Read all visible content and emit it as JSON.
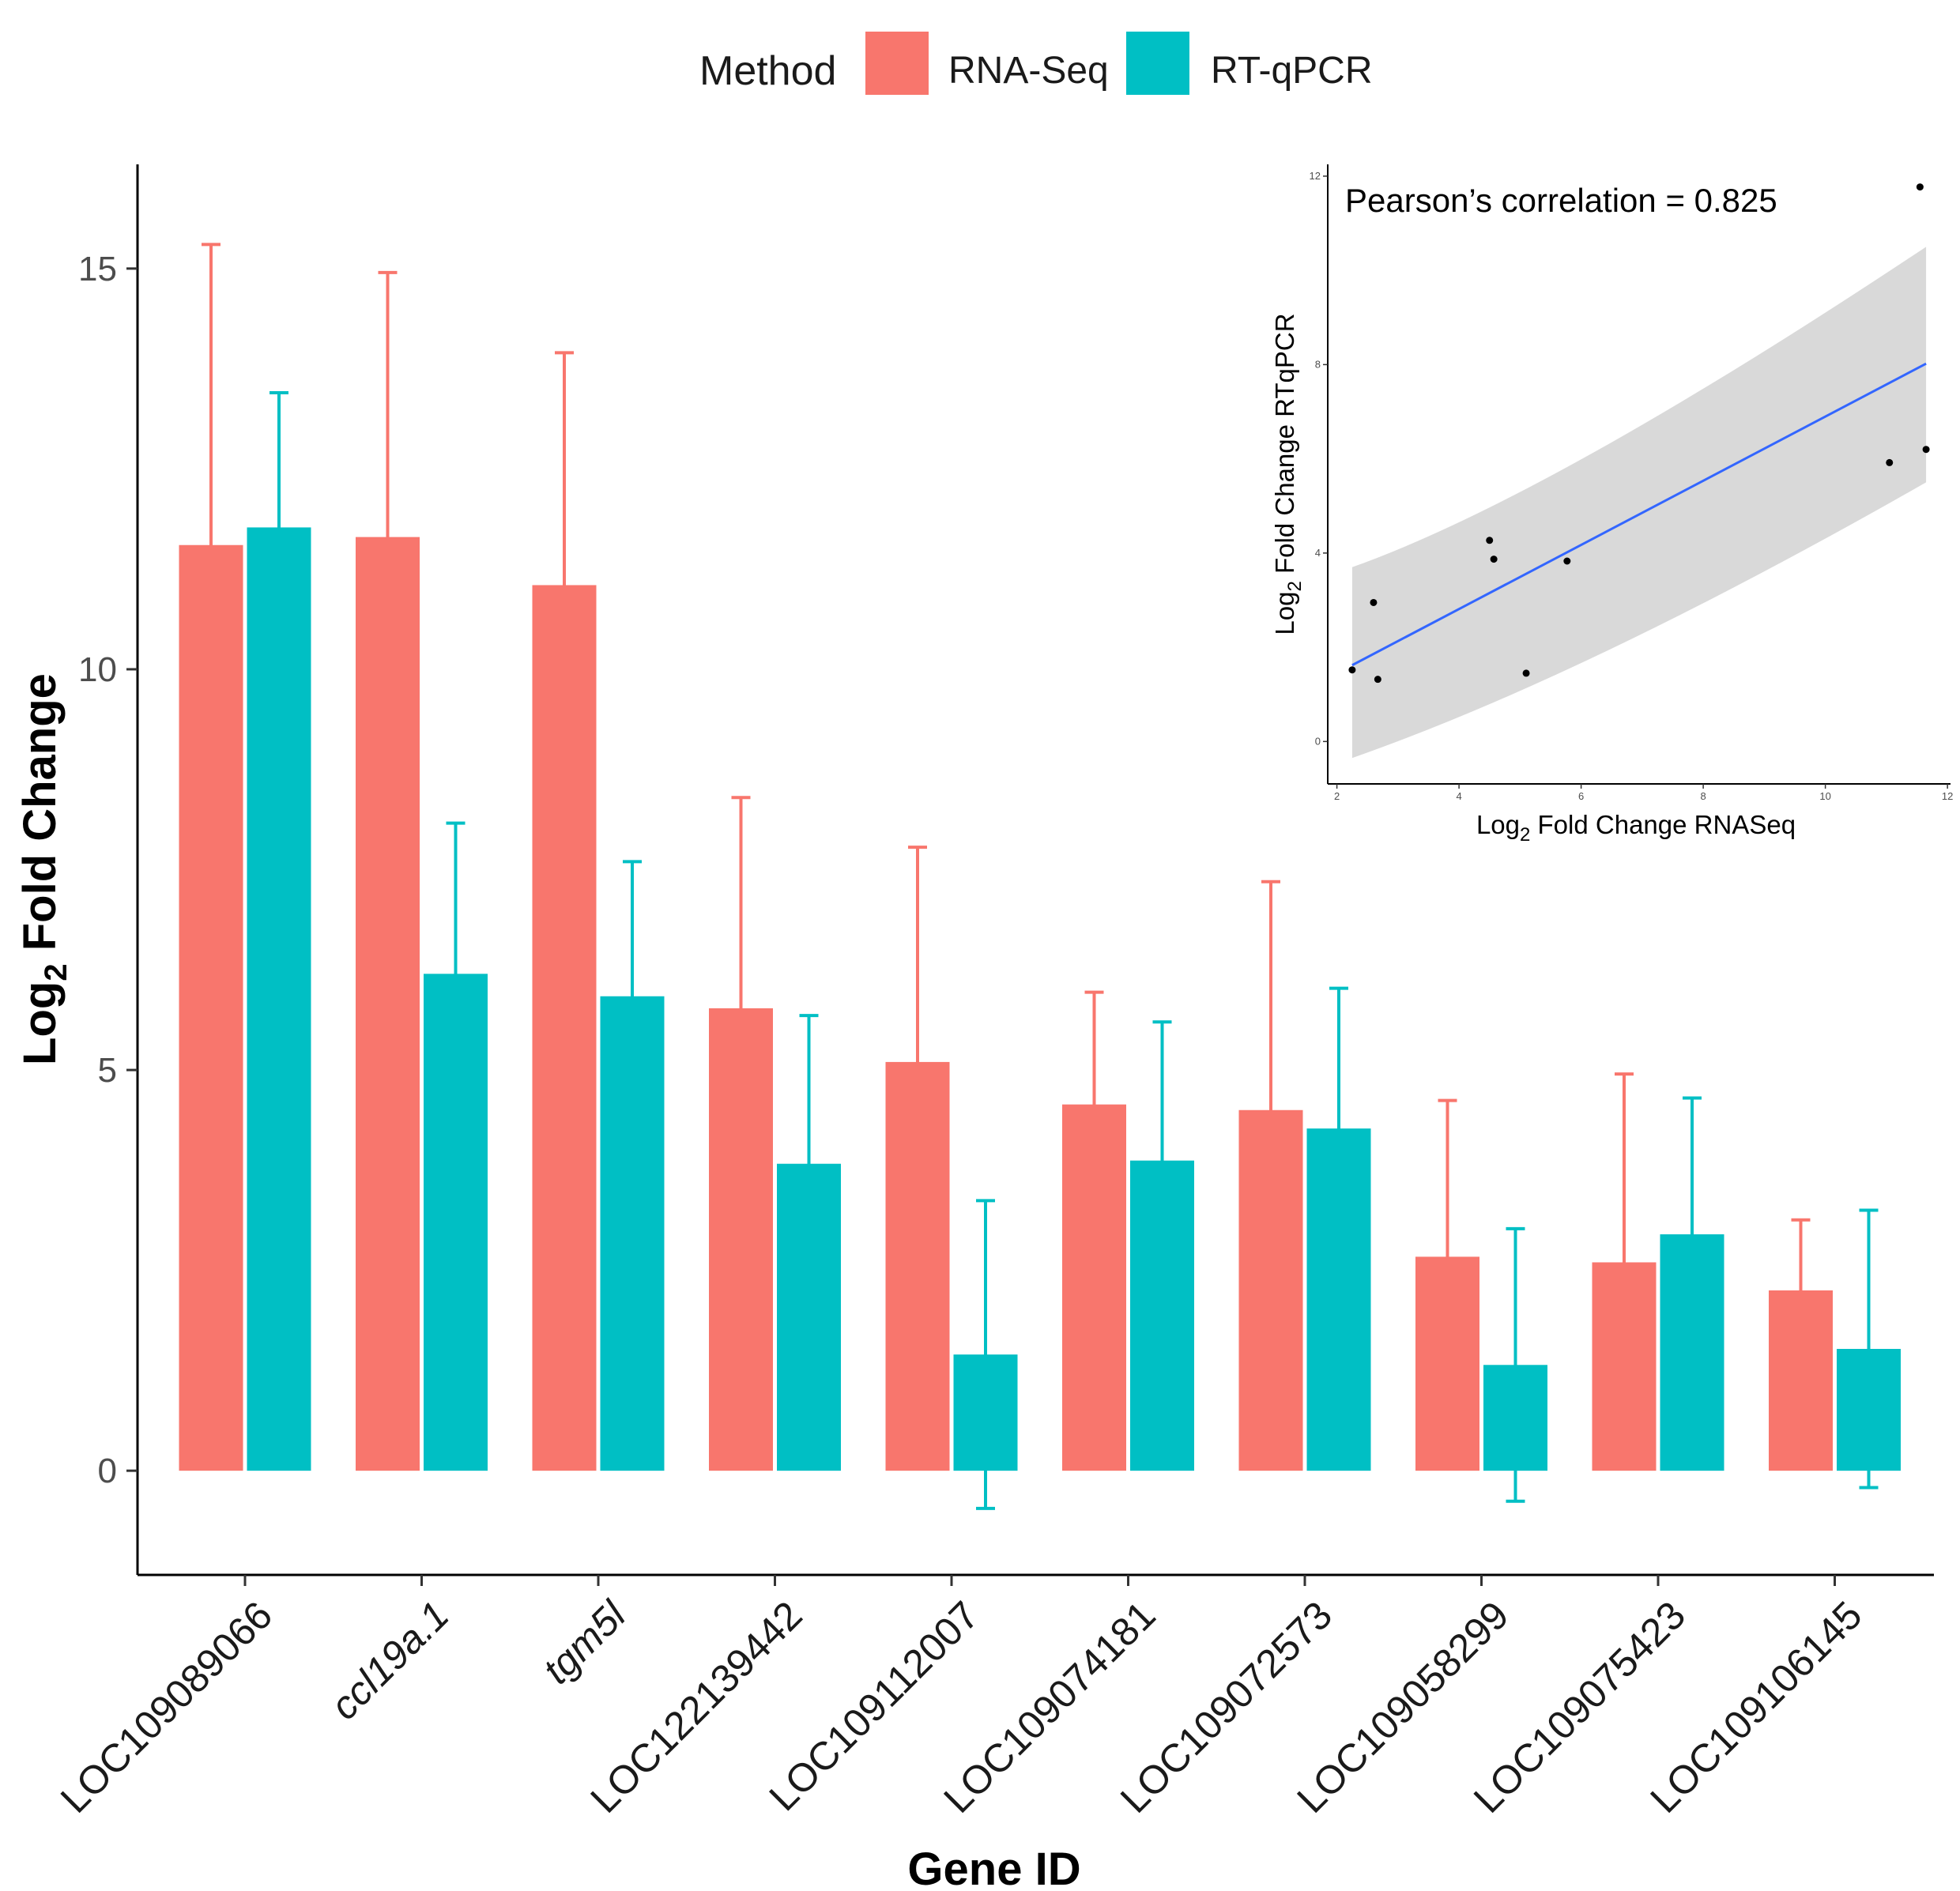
{
  "chart_data": [
    {
      "type": "bar",
      "title": "",
      "legend": {
        "title": "Method",
        "position": "top",
        "entries": [
          {
            "label": "RNA-Seq",
            "color": "#F8766D"
          },
          {
            "label": "RT-qPCR",
            "color": "#00BFC4"
          }
        ]
      },
      "xlabel": "Gene ID",
      "ylabel_main": "Log",
      "ylabel_sub": "2",
      "ylabel_rest": " Fold Change",
      "ylim": [
        -1.3,
        16.3
      ],
      "yticks": [
        0,
        5,
        10,
        15
      ],
      "categories": [
        {
          "label": "LOC109089066",
          "italic": false
        },
        {
          "label": "ccl19a.1",
          "italic": true
        },
        {
          "label": "tgm5l",
          "italic": true
        },
        {
          "label": "LOC122139442",
          "italic": false
        },
        {
          "label": "LOC109112007",
          "italic": false
        },
        {
          "label": "LOC109074181",
          "italic": false
        },
        {
          "label": "LOC109072573",
          "italic": false
        },
        {
          "label": "LOC109058299",
          "italic": false
        },
        {
          "label": "LOC109075423",
          "italic": false
        },
        {
          "label": "LOC109106145",
          "italic": false
        }
      ],
      "series": [
        {
          "name": "RNA-Seq",
          "color": "#F8766D",
          "values": [
            11.55,
            11.65,
            11.05,
            5.77,
            5.1,
            4.57,
            4.5,
            2.67,
            2.6,
            2.25
          ],
          "error": [
            3.75,
            3.3,
            2.9,
            2.63,
            2.68,
            1.4,
            2.85,
            1.95,
            2.35,
            0.88
          ]
        },
        {
          "name": "RT-qPCR",
          "color": "#00BFC4",
          "values": [
            11.77,
            6.2,
            5.92,
            3.83,
            1.45,
            3.87,
            4.27,
            1.32,
            2.95,
            1.52
          ],
          "error": [
            1.68,
            1.88,
            1.68,
            1.85,
            1.92,
            1.73,
            1.75,
            1.7,
            1.7,
            1.73
          ]
        }
      ]
    },
    {
      "type": "scatter",
      "title": "",
      "annotation": "Pearson’s correlation = 0.825",
      "xlabel_main": "Log",
      "xlabel_sub": "2",
      "xlabel_rest": " Fold Change RNASeq",
      "ylabel_main": "Log",
      "ylabel_sub": "2",
      "ylabel_rest": " Fold Change RTqPCR",
      "xlim": [
        1.85,
        12.05
      ],
      "ylim": [
        -0.9,
        12.25
      ],
      "xticks": [
        2,
        4,
        6,
        8,
        10,
        12
      ],
      "yticks": [
        0,
        4,
        8,
        12
      ],
      "points": [
        {
          "x": 2.25,
          "y": 1.52
        },
        {
          "x": 2.6,
          "y": 2.95
        },
        {
          "x": 2.67,
          "y": 1.32
        },
        {
          "x": 4.5,
          "y": 4.27
        },
        {
          "x": 4.57,
          "y": 3.87
        },
        {
          "x": 5.1,
          "y": 1.45
        },
        {
          "x": 5.77,
          "y": 3.83
        },
        {
          "x": 11.05,
          "y": 5.92
        },
        {
          "x": 11.55,
          "y": 11.77
        },
        {
          "x": 11.65,
          "y": 6.2
        }
      ],
      "fit": {
        "x_range": [
          2.25,
          11.65
        ],
        "line_y": [
          1.62,
          8.02
        ],
        "band_upper_y": [
          3.7,
          10.5
        ],
        "band_lower_y": [
          -0.35,
          5.5
        ],
        "band_mid_x": 5.5,
        "band_mid_upper_y": 5.2,
        "band_mid_lower_y": 2.4,
        "line_color": "#3366FF",
        "band_color": "#D9D9D9"
      }
    }
  ]
}
